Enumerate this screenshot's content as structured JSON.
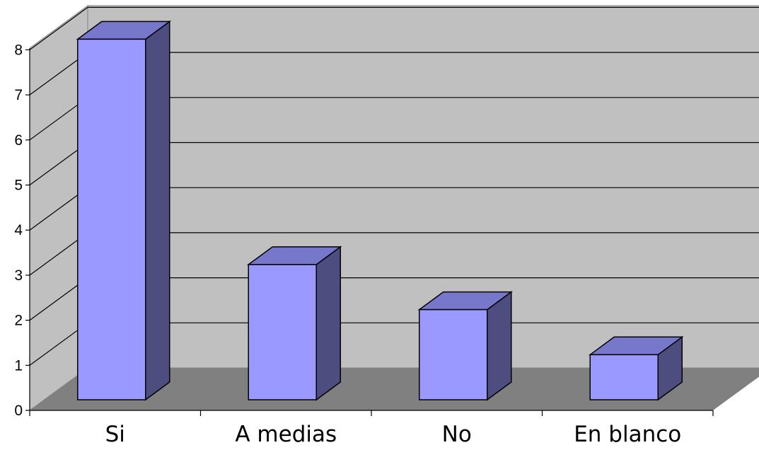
{
  "chart_data": {
    "type": "bar",
    "title": "",
    "xlabel": "",
    "ylabel": "",
    "categories": [
      "Si",
      "A medias",
      "No",
      "En blanco"
    ],
    "values": [
      8,
      3,
      2,
      1
    ],
    "ylim": [
      0,
      8
    ],
    "yticks": [
      "0",
      "1",
      "2",
      "3",
      "4",
      "5",
      "6",
      "7",
      "8"
    ],
    "grid": true,
    "style": "3d-column",
    "colors": {
      "bar_front": "#9999ff",
      "bar_top": "#7777cc",
      "bar_side": "#4d4d80",
      "back_wall": "#c0c0c0",
      "side_wall": "#c0c0c0",
      "floor": "#808080"
    }
  }
}
